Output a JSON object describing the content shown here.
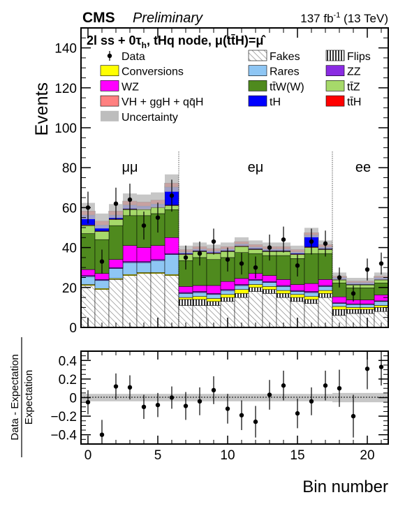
{
  "header": {
    "experiment": "CMS",
    "status": "Preliminary",
    "lumi": "137 fb",
    "lumi_exp": "-1",
    "energy": "(13 TeV)"
  },
  "category": {
    "main": "2l ss + 0τ",
    "sub": "h",
    "rest": ", tHq node, μ(tt̄H)=μ̂"
  },
  "regions": [
    "μμ",
    "eμ",
    "ee"
  ],
  "colors": {
    "Fakes": "hatch-diagonal",
    "Flips": "hatch-vertical",
    "Conversions": "#ffff00",
    "Rares": "#8ec6f4",
    "ZZ": "#8a2be2",
    "WZ": "#ff00ff",
    "ttW": "#4f8a1e",
    "ttZ": "#a6d96a",
    "VH": "#ff8080",
    "tH": "#0000ff",
    "ttH": "#ff0000",
    "Uncertainty": "#bdbdbd"
  },
  "chart_data": [
    {
      "type": "bar",
      "stacked": true,
      "title": "",
      "xlabel": "",
      "ylabel": "Events",
      "ylim": [
        0,
        150
      ],
      "yticks": [
        0,
        20,
        40,
        60,
        80,
        100,
        120,
        140
      ],
      "xlim": [
        -0.5,
        21.5
      ],
      "xticks": [
        0,
        5,
        10,
        15,
        20
      ],
      "grid": false,
      "legend_position": "top",
      "region_boundaries": [
        6.5,
        17.5
      ],
      "bins": [
        0,
        1,
        2,
        3,
        4,
        5,
        6,
        7,
        8,
        9,
        10,
        11,
        12,
        13,
        14,
        15,
        16,
        17,
        18,
        19,
        20,
        21
      ],
      "legend": [
        {
          "key": "Data",
          "label": "Data"
        },
        {
          "key": "Fakes",
          "label": "Fakes"
        },
        {
          "key": "Flips",
          "label": "Flips"
        },
        {
          "key": "Conversions",
          "label": "Conversions"
        },
        {
          "key": "Rares",
          "label": "Rares"
        },
        {
          "key": "ZZ",
          "label": "ZZ"
        },
        {
          "key": "WZ",
          "label": "WZ"
        },
        {
          "key": "ttW",
          "label": "tt̄W(W)"
        },
        {
          "key": "ttZ",
          "label": "tt̄Z"
        },
        {
          "key": "VH",
          "label": "VH + ggH + qq̄H"
        },
        {
          "key": "tH",
          "label": "tH"
        },
        {
          "key": "ttH",
          "label": "tt̄H"
        },
        {
          "key": "Uncertainty",
          "label": "Uncertainty"
        }
      ],
      "stack_order": [
        "Fakes",
        "Flips",
        "Conversions",
        "Rares",
        "ZZ",
        "WZ",
        "ttW",
        "ttZ",
        "VH",
        "tH",
        "ttH"
      ],
      "series": [
        {
          "name": "Fakes",
          "values": [
            21,
            19,
            24,
            26,
            27,
            27,
            26,
            11,
            11,
            11,
            13,
            15,
            18,
            17,
            15,
            13,
            12,
            15,
            6,
            7,
            7,
            8
          ]
        },
        {
          "name": "Flips",
          "values": [
            0,
            0,
            0,
            0,
            0,
            0,
            0,
            3,
            3,
            2,
            2,
            2,
            2,
            2,
            2,
            2,
            2,
            2,
            3,
            2,
            2,
            2
          ]
        },
        {
          "name": "Conversions",
          "values": [
            0.5,
            0.5,
            0.5,
            0.5,
            0.5,
            0.5,
            0.5,
            1,
            1.5,
            1.5,
            1.5,
            2,
            1.5,
            1.5,
            1.5,
            1.5,
            1.5,
            1.5,
            1.5,
            1,
            1,
            1
          ]
        },
        {
          "name": "Rares",
          "values": [
            4,
            4,
            5,
            6,
            5,
            6,
            10,
            2,
            2,
            2,
            2,
            2,
            2,
            2,
            2,
            1.5,
            2,
            2,
            1.5,
            1.5,
            1.5,
            2
          ]
        },
        {
          "name": "ZZ",
          "values": [
            0.5,
            0.5,
            0.5,
            0.5,
            0.5,
            0.5,
            0.5,
            0.5,
            0.5,
            0.5,
            0.5,
            0.5,
            0.5,
            0.5,
            0.5,
            0.5,
            0.5,
            0.5,
            0.3,
            0.3,
            0.3,
            0.3
          ]
        },
        {
          "name": "WZ",
          "values": [
            3,
            3,
            4,
            8,
            7,
            7,
            8,
            3,
            3,
            4,
            4,
            3,
            3,
            3,
            3,
            3,
            4,
            3,
            3,
            2,
            2,
            3
          ]
        },
        {
          "name": "ttW",
          "values": [
            18,
            17,
            17,
            15,
            16,
            16,
            14,
            13,
            14,
            13,
            12,
            13,
            10,
            10,
            12,
            13,
            15,
            13,
            7,
            6,
            6,
            6
          ]
        },
        {
          "name": "ttZ",
          "values": [
            4,
            4,
            3,
            3,
            3,
            3,
            2,
            3,
            3,
            3,
            3,
            3,
            2,
            2,
            2,
            2,
            3,
            2,
            1.5,
            1.5,
            1.5,
            1.5
          ]
        },
        {
          "name": "VH",
          "values": [
            0.3,
            0.3,
            0.3,
            0.3,
            0.3,
            0.3,
            0.3,
            0.3,
            0.3,
            0.3,
            0.3,
            0.3,
            0.3,
            0.3,
            0.3,
            0.3,
            0.3,
            0.3,
            0.2,
            0.2,
            0.2,
            0.2
          ]
        },
        {
          "name": "tH",
          "values": [
            5,
            3,
            2,
            2,
            1.5,
            1.5,
            9,
            1,
            1,
            1,
            1,
            1,
            1,
            1,
            1,
            1,
            6,
            1,
            1,
            1,
            1,
            1
          ]
        },
        {
          "name": "ttH",
          "values": [
            2,
            2,
            2,
            2,
            2,
            2,
            2,
            1.2,
            1.2,
            1.2,
            1.2,
            1.2,
            1.2,
            1.2,
            1.2,
            1.2,
            1.2,
            1.2,
            0.7,
            0.7,
            0.7,
            0.7
          ]
        }
      ],
      "uncertainty_frac": [
        0.07,
        0.07,
        0.06,
        0.06,
        0.06,
        0.06,
        0.06,
        0.05,
        0.05,
        0.05,
        0.05,
        0.05,
        0.05,
        0.05,
        0.05,
        0.05,
        0.05,
        0.05,
        0.07,
        0.07,
        0.07,
        0.07
      ],
      "data": {
        "name": "Data",
        "values": [
          60,
          33,
          62,
          64,
          51,
          55,
          66,
          35,
          37,
          43,
          34,
          32,
          30,
          40,
          44,
          31,
          43,
          42,
          25,
          17,
          29,
          32
        ],
        "errors": [
          8,
          6,
          8,
          8,
          7,
          7.5,
          8,
          6,
          6,
          6.5,
          6,
          5.5,
          5.5,
          6.5,
          6.5,
          5.5,
          6.5,
          6.5,
          5,
          4,
          5.5,
          5.5
        ]
      }
    },
    {
      "type": "scatter",
      "title": "",
      "xlabel": "Bin number",
      "ylabel": "Data - Expectation / Expectation",
      "ylabel_num": "Data - Expectation",
      "ylabel_den": "Expectation",
      "xlim": [
        -0.5,
        21.5
      ],
      "ylim": [
        -0.5,
        0.5
      ],
      "xticks": [
        0,
        5,
        10,
        15,
        20
      ],
      "yticks": [
        -0.4,
        -0.2,
        0,
        0.2,
        0.4
      ],
      "ytick_labels": [
        "−0.4",
        "−0.2",
        "0",
        "0.2",
        "0.4"
      ],
      "grid": false,
      "x": [
        0,
        1,
        2,
        3,
        4,
        5,
        6,
        7,
        8,
        9,
        10,
        11,
        12,
        13,
        14,
        15,
        16,
        17,
        18,
        19,
        20,
        21
      ],
      "values": [
        -0.05,
        -0.4,
        0.12,
        0.11,
        -0.1,
        -0.08,
        0.0,
        -0.09,
        -0.04,
        0.08,
        -0.12,
        -0.19,
        -0.26,
        0.03,
        0.13,
        -0.17,
        -0.04,
        0.13,
        0.1,
        -0.2,
        0.31,
        0.33
      ],
      "errors": [
        0.13,
        0.16,
        0.14,
        0.13,
        0.13,
        0.13,
        0.12,
        0.15,
        0.15,
        0.15,
        0.16,
        0.16,
        0.17,
        0.16,
        0.16,
        0.16,
        0.15,
        0.16,
        0.2,
        0.23,
        0.22,
        0.2
      ],
      "band_frac": [
        0.04,
        0.04,
        0.04,
        0.04,
        0.04,
        0.04,
        0.04,
        0.04,
        0.04,
        0.04,
        0.04,
        0.04,
        0.04,
        0.04,
        0.04,
        0.04,
        0.04,
        0.04,
        0.05,
        0.05,
        0.05,
        0.05
      ]
    }
  ]
}
